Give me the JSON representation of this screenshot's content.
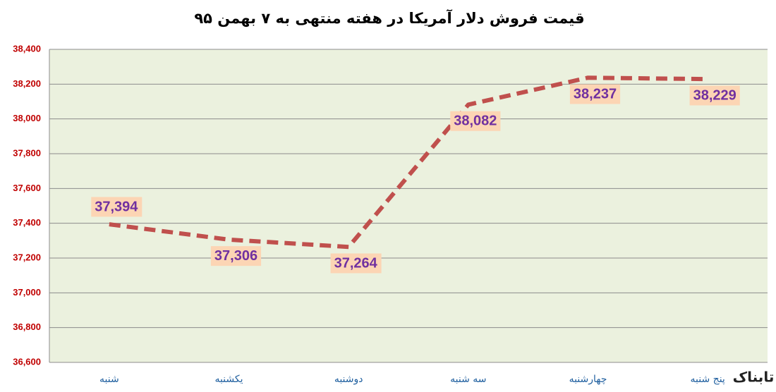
{
  "chart_data": {
    "type": "line",
    "title": "قیمت فروش دلار آمریکا در هفته منتهی به ۷ بهمن ۹۵",
    "categories": [
      "شنبه",
      "یکشنبه",
      "دوشنبه",
      "سه شنبه",
      "چهارشنبه",
      "پنج شنبه"
    ],
    "values": [
      37394,
      37306,
      37264,
      38082,
      38237,
      38229
    ],
    "value_labels": [
      "37,394",
      "37,306",
      "37,264",
      "38,082",
      "38,237",
      "38,229"
    ],
    "color": "#c0504d",
    "ylim": [
      36600,
      38400
    ],
    "yticks": [
      {
        "value": 36600,
        "label": "36,600"
      },
      {
        "value": 36800,
        "label": "36,800"
      },
      {
        "value": 37000,
        "label": "37,000"
      },
      {
        "value": 37200,
        "label": "37,200"
      },
      {
        "value": 37400,
        "label": "37,400"
      },
      {
        "value": 37600,
        "label": "37,600"
      },
      {
        "value": 37800,
        "label": "37,800"
      },
      {
        "value": 38000,
        "label": "38,000"
      },
      {
        "value": 38200,
        "label": "38,200"
      },
      {
        "value": 38400,
        "label": "38,400"
      }
    ],
    "grid": true,
    "watermark": "تابناک"
  }
}
